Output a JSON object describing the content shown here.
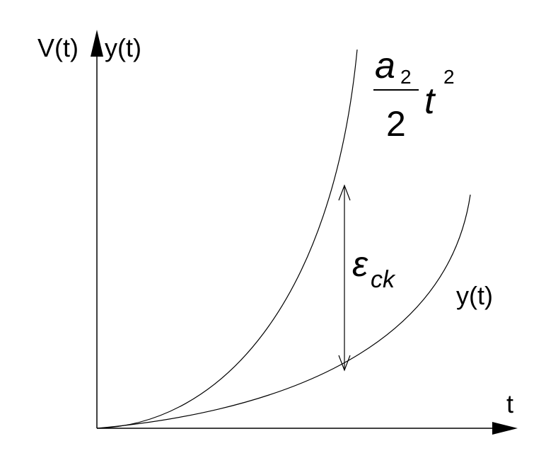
{
  "axes": {
    "y_label_left": "V(t)",
    "y_label_right": "y(t)",
    "x_label": "t"
  },
  "formula": {
    "numerator": "a",
    "numerator_subscript": "2",
    "denominator": "2",
    "variable": "t",
    "exponent": "2"
  },
  "error_label": {
    "symbol": "ε",
    "subscript": "ck"
  },
  "curve_label": "y(t)"
}
